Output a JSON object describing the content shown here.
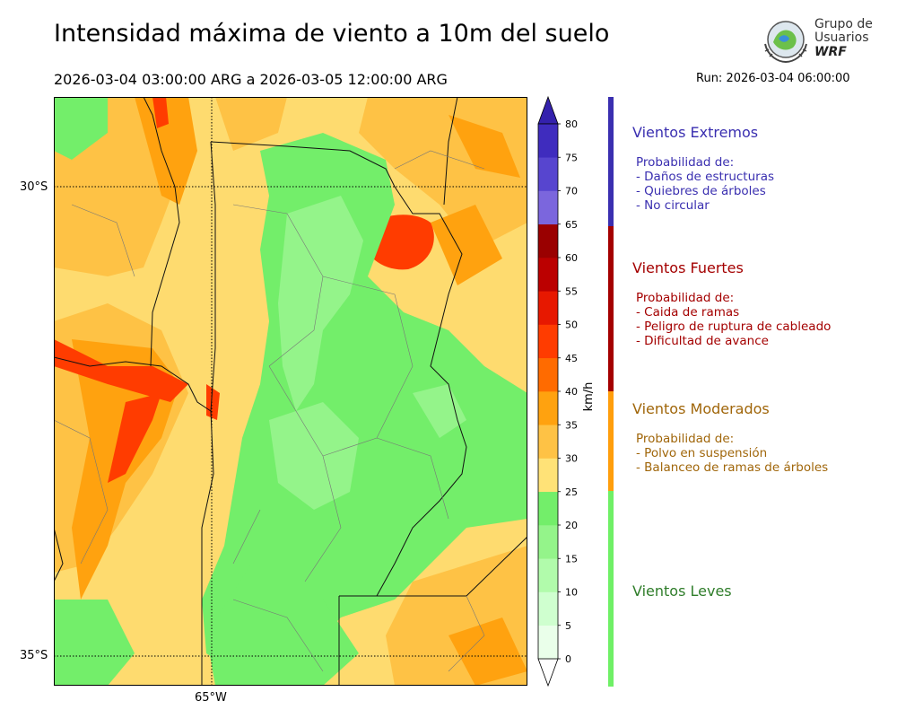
{
  "header": {
    "title": "Intensidad máxima de viento a 10m del suelo",
    "period": "2026-03-04 03:00:00 ARG  a  2026-03-05 12:00:00 ARG",
    "run": "Run: 2026-03-04 06:00:00"
  },
  "logo": {
    "line1": "Grupo de",
    "line2": "Usuarios",
    "line3": "WRF"
  },
  "map": {
    "lat_labels": [
      "30°S",
      "35°S"
    ],
    "lon_labels": [
      "65°W"
    ]
  },
  "colorbar": {
    "unit": "km/h",
    "ticks": [
      "0",
      "5",
      "10",
      "15",
      "20",
      "25",
      "30",
      "35",
      "40",
      "45",
      "50",
      "55",
      "60",
      "65",
      "70",
      "75",
      "80"
    ],
    "levels": [
      0,
      5,
      10,
      15,
      20,
      25,
      30,
      35,
      40,
      45,
      50,
      55,
      60,
      65,
      70,
      75,
      80
    ],
    "colors": [
      "#eaffea",
      "#cfffcf",
      "#b1fbab",
      "#94f48a",
      "#73ee6a",
      "#ffe277",
      "#fec245",
      "#ffa20f",
      "#ff6b00",
      "#ff3c00",
      "#e71800",
      "#bb0000",
      "#9a0000",
      "#7b66dd",
      "#5745cf",
      "#3f2cbe"
    ],
    "extend_max_color": "#3421ad",
    "extend_min_color": "#ffffff"
  },
  "legend": [
    {
      "name": "Vientos Extremos",
      "desc": [
        "Probabilidad de:",
        "- Daños de estructuras",
        "- Quiebres de árboles",
        "- No circular"
      ],
      "color": "#3a2fb0"
    },
    {
      "name": "Vientos Fuertes",
      "desc": [
        "Probabilidad de:",
        "- Caida de ramas",
        "- Peligro de ruptura de cableado",
        "- Dificultad de avance"
      ],
      "color": "#a40000"
    },
    {
      "name": "Vientos Moderados",
      "desc": [
        "Probabilidad de:",
        "- Polvo en suspensión",
        "- Balanceo de ramas de árboles"
      ],
      "color": "#a0660a",
      "bar_color": "#ff9e0c"
    },
    {
      "name": "Vientos Leves",
      "desc": [],
      "color": "#2f7d2a",
      "bar_color": "#6ff066"
    }
  ]
}
